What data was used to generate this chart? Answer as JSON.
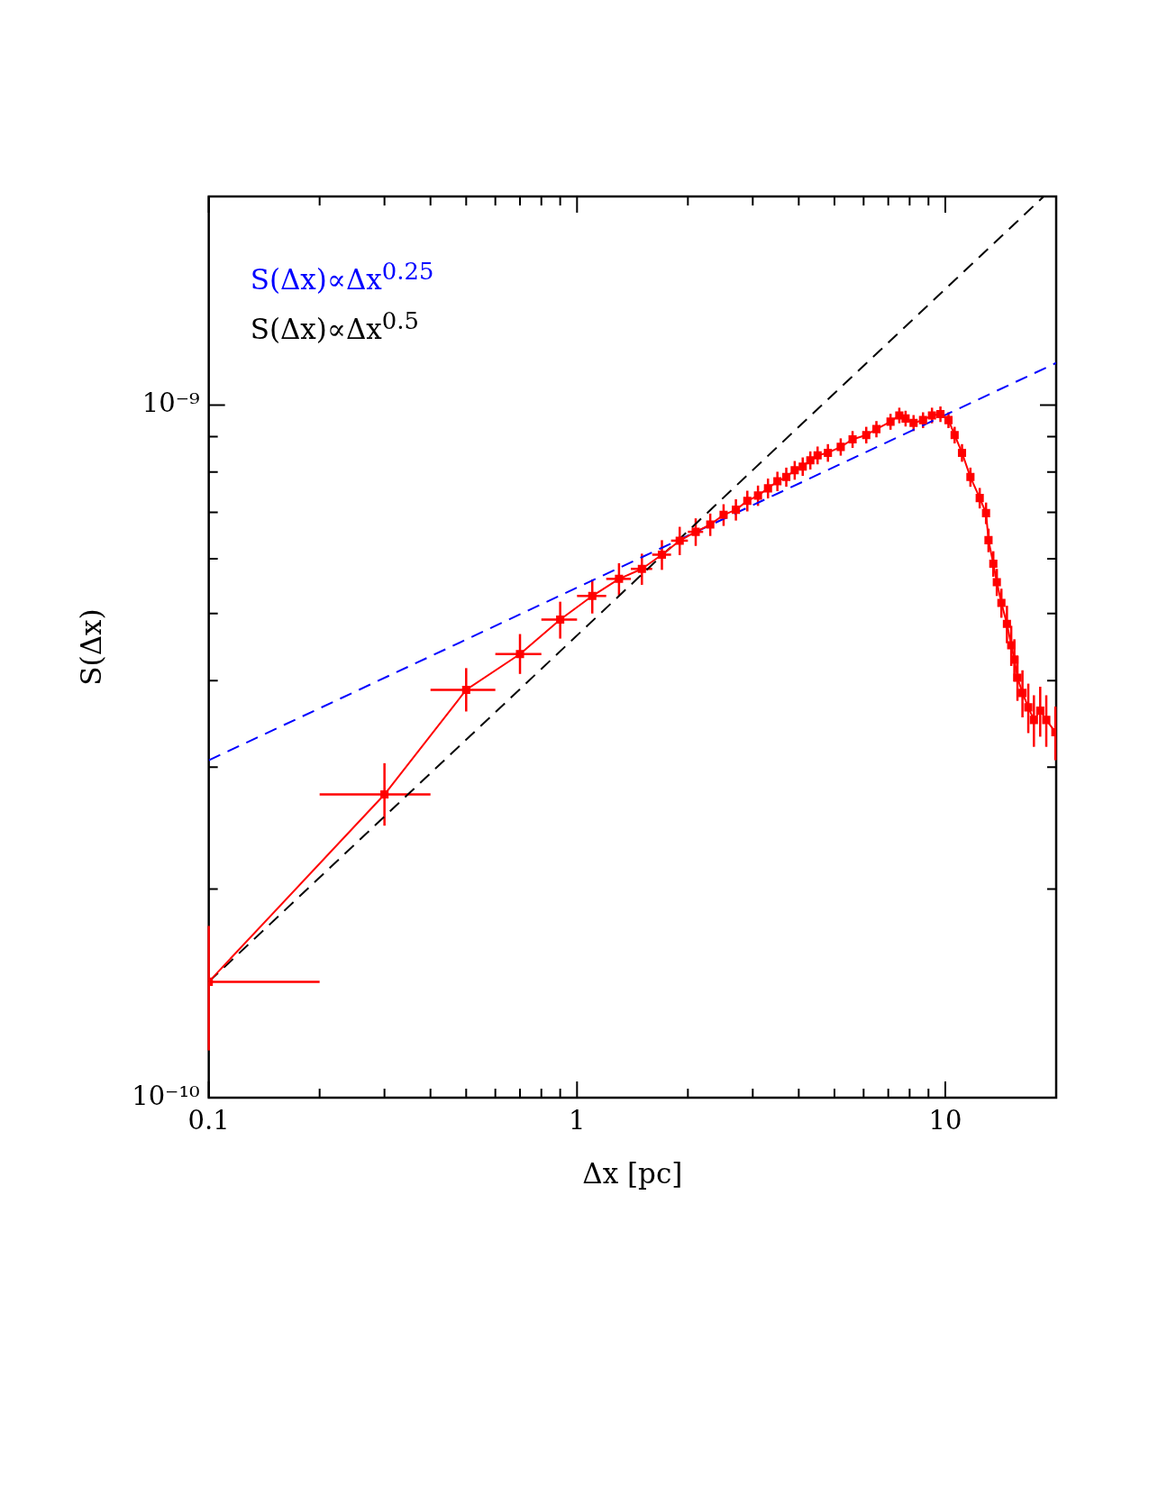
{
  "chart_data": {
    "type": "line",
    "xlabel": "Δx [pc]",
    "ylabel": "S(Δx)",
    "log": "xy",
    "grid": false,
    "legend": "top left",
    "xlim": [
      0.1,
      20
    ],
    "ylim": [
      1e-10,
      2e-09
    ],
    "xticks": [
      {
        "value": 0.1,
        "label": "0.1"
      },
      {
        "value": 0.2,
        "label": null
      },
      {
        "value": 0.3,
        "label": null
      },
      {
        "value": 0.4,
        "label": null
      },
      {
        "value": 0.5,
        "label": null
      },
      {
        "value": 0.6,
        "label": null
      },
      {
        "value": 0.7,
        "label": null
      },
      {
        "value": 0.8,
        "label": null
      },
      {
        "value": 0.9,
        "label": null
      },
      {
        "value": 1,
        "label": "1"
      },
      {
        "value": 2,
        "label": null
      },
      {
        "value": 3,
        "label": null
      },
      {
        "value": 4,
        "label": null
      },
      {
        "value": 5,
        "label": null
      },
      {
        "value": 6,
        "label": null
      },
      {
        "value": 7,
        "label": null
      },
      {
        "value": 8,
        "label": null
      },
      {
        "value": 9,
        "label": null
      },
      {
        "value": 10,
        "label": "10"
      }
    ],
    "yticks": [
      {
        "value": 1e-10,
        "label": "10⁻¹⁰"
      },
      {
        "value": 2e-10,
        "label": null
      },
      {
        "value": 3e-10,
        "label": null
      },
      {
        "value": 4e-10,
        "label": null
      },
      {
        "value": 5e-10,
        "label": null
      },
      {
        "value": 6e-10,
        "label": null
      },
      {
        "value": 7e-10,
        "label": null
      },
      {
        "value": 8e-10,
        "label": null
      },
      {
        "value": 9e-10,
        "label": null
      },
      {
        "value": 1e-09,
        "label": "10⁻⁹"
      }
    ],
    "series": [
      {
        "color": "#ff0000",
        "marker": "square",
        "line_style": "solid",
        "x": [
          0.1,
          0.3,
          0.5,
          0.7,
          0.9,
          1.1,
          1.3,
          1.5,
          1.7,
          1.9,
          2.1,
          2.3,
          2.5,
          2.7,
          2.9,
          3.1,
          3.3,
          3.5,
          3.7,
          3.9,
          4.1,
          4.3,
          4.5,
          4.8,
          5.2,
          5.6,
          6.1,
          6.5,
          7.1,
          7.5,
          7.8,
          8.2,
          8.7,
          9.2,
          9.7,
          10.2,
          10.6,
          11.1,
          11.7,
          12.4,
          12.9,
          13.1,
          13.5,
          13.8,
          14.2,
          14.7,
          15.1,
          15.4,
          15.7,
          16.2,
          16.8,
          17.4,
          18.1,
          18.8,
          19.9
        ],
        "values": [
          1.47e-10,
          2.74e-10,
          3.88e-10,
          4.37e-10,
          4.9e-10,
          5.3e-10,
          5.61e-10,
          5.8e-10,
          6.08e-10,
          6.37e-10,
          6.56e-10,
          6.72e-10,
          6.94e-10,
          7.06e-10,
          7.27e-10,
          7.4e-10,
          7.58e-10,
          7.76e-10,
          7.87e-10,
          8.05e-10,
          8.15e-10,
          8.32e-10,
          8.46e-10,
          8.53e-10,
          8.7e-10,
          8.92e-10,
          9.05e-10,
          9.23e-10,
          9.46e-10,
          9.66e-10,
          9.56e-10,
          9.42e-10,
          9.51e-10,
          9.66e-10,
          9.7e-10,
          9.51e-10,
          9.05e-10,
          8.53e-10,
          7.87e-10,
          7.34e-10,
          6.98e-10,
          6.38e-10,
          5.9e-10,
          5.55e-10,
          5.18e-10,
          4.83e-10,
          4.5e-10,
          4.29e-10,
          4.04e-10,
          3.84e-10,
          3.66e-10,
          3.51e-10,
          3.62e-10,
          3.51e-10,
          3.37e-10
        ],
        "errors": [
          [
            1.17e-10,
            1.77e-10
          ],
          [
            2.47e-10,
            3.04e-10
          ],
          [
            3.61e-10,
            4.17e-10
          ],
          [
            4.09e-10,
            4.67e-10
          ],
          3e-11,
          3e-11,
          3e-11,
          3e-11,
          3e-11,
          3e-11,
          3e-11,
          2.5e-11,
          2.5e-11,
          2.5e-11,
          2.5e-11,
          2.5e-11,
          2.5e-11,
          2.5e-11,
          2.5e-11,
          2.5e-11,
          2.5e-11,
          2.5e-11,
          2.5e-11,
          2.5e-11,
          2.5e-11,
          2.5e-11,
          2.5e-11,
          2.5e-11,
          2.5e-11,
          2.5e-11,
          2.5e-11,
          2.5e-11,
          2.5e-11,
          2.5e-11,
          2.5e-11,
          2.5e-11,
          2.5e-11,
          2.5e-11,
          2.5e-11,
          2.5e-11,
          2.5e-11,
          2.5e-11,
          2.5e-11,
          2.5e-11,
          2.5e-11,
          3e-11,
          3e-11,
          3e-11,
          3e-11,
          3e-11,
          3e-11,
          3e-11,
          3e-11,
          3e-11,
          3e-11
        ],
        "xerrors": [
          [
            0.1,
            0.2
          ],
          [
            0.2,
            0.4
          ],
          [
            0.4,
            0.6
          ],
          [
            0.6,
            0.8
          ],
          [
            0.8,
            1.0
          ],
          [
            1.0,
            1.2
          ],
          [
            1.2,
            1.4
          ],
          [
            1.4,
            1.6
          ],
          [
            1.6,
            1.8
          ],
          [
            1.8,
            2.0
          ],
          [
            2.0,
            2.2
          ],
          null,
          null,
          null,
          null,
          null,
          null,
          null,
          null,
          null,
          null,
          null,
          null,
          null,
          null,
          null,
          null,
          null,
          null,
          null,
          null,
          null,
          null,
          null,
          null,
          null,
          null,
          null,
          null,
          null,
          null,
          null,
          null,
          null,
          null,
          null,
          null,
          null,
          null,
          null,
          null,
          null,
          null,
          null,
          null
        ]
      },
      {
        "name": "S(Δx)∝Δx$^{0.25}$",
        "color": "#0000ff",
        "marker": "none",
        "line_style": "dashed",
        "x": [
          0.1,
          20
        ],
        "values": [
          3.07e-10,
          1.15e-09
        ]
      },
      {
        "name": "S(Δx)∝Δx$^{0.5}$",
        "color": "#000000",
        "marker": "none",
        "line_style": "dashed",
        "x": [
          0.1,
          18.5
        ],
        "values": [
          1.47e-10,
          2e-09
        ]
      }
    ]
  }
}
